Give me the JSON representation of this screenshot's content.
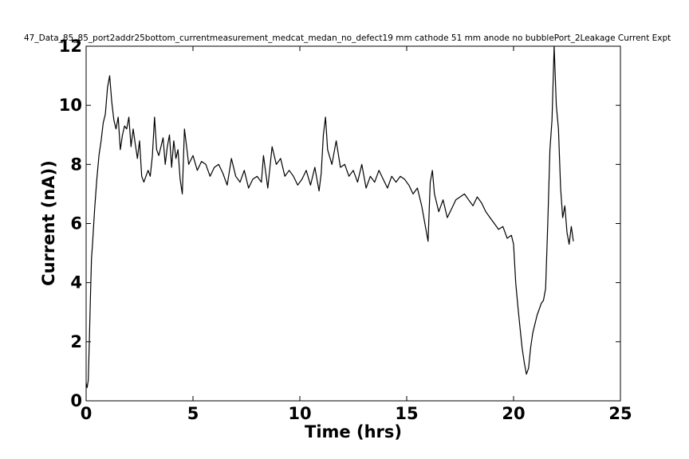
{
  "chart_data": {
    "type": "line",
    "title": "47_Data_85_85_port2addr25bottom_currentmeasurement_medcat_medan_no_defect19 mm cathode 51 mm anode no bubblePort_2Leakage Current Expt",
    "xlabel": "Time (hrs)",
    "ylabel": "Current (nA))",
    "xlim": [
      0,
      25
    ],
    "ylim": [
      0,
      12
    ],
    "xticks": [
      0,
      5,
      10,
      15,
      20,
      25
    ],
    "yticks": [
      0,
      2,
      4,
      6,
      8,
      10,
      12
    ],
    "grid": false,
    "legend": "none",
    "line_color": "#000000",
    "series": [
      {
        "x": [
          0.0,
          0.05,
          0.1,
          0.15,
          0.2,
          0.25,
          0.3,
          0.4,
          0.5,
          0.6,
          0.7,
          0.8,
          0.9,
          1.0,
          1.1,
          1.2,
          1.3,
          1.4,
          1.5,
          1.6,
          1.7,
          1.8,
          1.9,
          2.0,
          2.1,
          2.2,
          2.3,
          2.4,
          2.5,
          2.6,
          2.7,
          2.8,
          2.9,
          3.0,
          3.1,
          3.2,
          3.3,
          3.4,
          3.5,
          3.6,
          3.7,
          3.8,
          3.9,
          4.0,
          4.1,
          4.2,
          4.3,
          4.4,
          4.5,
          4.6,
          4.7,
          4.8,
          5.0,
          5.2,
          5.4,
          5.6,
          5.8,
          6.0,
          6.2,
          6.4,
          6.6,
          6.8,
          7.0,
          7.2,
          7.4,
          7.6,
          7.8,
          8.0,
          8.2,
          8.3,
          8.5,
          8.7,
          8.9,
          9.1,
          9.3,
          9.5,
          9.7,
          9.9,
          10.1,
          10.3,
          10.5,
          10.7,
          10.9,
          11.0,
          11.1,
          11.2,
          11.3,
          11.5,
          11.7,
          11.9,
          12.1,
          12.3,
          12.5,
          12.7,
          12.9,
          13.1,
          13.3,
          13.5,
          13.7,
          13.9,
          14.1,
          14.3,
          14.5,
          14.7,
          14.9,
          15.1,
          15.3,
          15.5,
          15.7,
          15.9,
          16.0,
          16.1,
          16.2,
          16.3,
          16.5,
          16.7,
          16.9,
          17.1,
          17.3,
          17.5,
          17.7,
          17.9,
          18.1,
          18.3,
          18.5,
          18.7,
          18.9,
          19.1,
          19.3,
          19.5,
          19.7,
          19.9,
          20.0,
          20.1,
          20.2,
          20.3,
          20.4,
          20.5,
          20.6,
          20.7,
          20.8,
          20.9,
          21.0,
          21.1,
          21.2,
          21.3,
          21.4,
          21.5,
          21.6,
          21.7,
          21.8,
          21.9,
          22.0,
          22.1,
          22.2,
          22.3,
          22.4,
          22.5,
          22.6,
          22.7,
          22.8
        ],
        "values": [
          0.6,
          0.45,
          0.7,
          2.0,
          3.5,
          4.8,
          5.3,
          6.5,
          7.5,
          8.3,
          8.8,
          9.4,
          9.7,
          10.6,
          11.0,
          10.1,
          9.5,
          9.2,
          9.6,
          8.5,
          9.0,
          9.3,
          9.2,
          9.6,
          8.6,
          9.2,
          8.7,
          8.2,
          8.8,
          7.6,
          7.4,
          7.6,
          7.8,
          7.6,
          8.3,
          9.6,
          8.5,
          8.3,
          8.6,
          8.9,
          8.0,
          8.6,
          9.0,
          7.9,
          8.8,
          8.2,
          8.5,
          7.5,
          7.0,
          9.2,
          8.6,
          8.0,
          8.3,
          7.8,
          8.1,
          8.0,
          7.6,
          7.9,
          8.0,
          7.7,
          7.3,
          8.2,
          7.6,
          7.4,
          7.8,
          7.2,
          7.5,
          7.6,
          7.4,
          8.3,
          7.2,
          8.6,
          8.0,
          8.2,
          7.6,
          7.8,
          7.6,
          7.3,
          7.5,
          7.8,
          7.3,
          7.9,
          7.1,
          7.7,
          9.0,
          9.6,
          8.5,
          8.0,
          8.8,
          7.9,
          8.0,
          7.6,
          7.8,
          7.4,
          8.0,
          7.2,
          7.6,
          7.4,
          7.8,
          7.5,
          7.2,
          7.6,
          7.4,
          7.6,
          7.5,
          7.3,
          7.0,
          7.2,
          6.6,
          5.8,
          5.4,
          7.4,
          7.8,
          7.0,
          6.4,
          6.8,
          6.2,
          6.5,
          6.8,
          6.9,
          7.0,
          6.8,
          6.6,
          6.9,
          6.7,
          6.4,
          6.2,
          6.0,
          5.8,
          5.9,
          5.5,
          5.6,
          5.3,
          4.0,
          3.2,
          2.5,
          1.8,
          1.3,
          0.9,
          1.1,
          1.8,
          2.3,
          2.6,
          2.9,
          3.1,
          3.3,
          3.4,
          3.8,
          6.0,
          8.5,
          9.5,
          12.0,
          10.0,
          9.2,
          7.2,
          6.2,
          6.6,
          5.7,
          5.3,
          5.9,
          5.4
        ]
      }
    ]
  }
}
